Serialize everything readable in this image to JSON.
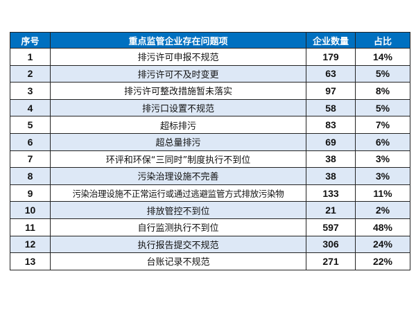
{
  "table": {
    "headers": [
      "序号",
      "重点监管企业存在问题项",
      "企业数量",
      "占比"
    ],
    "rows": [
      {
        "no": "1",
        "issue": "排污许可申报不规范",
        "count": "179",
        "pct": "14%"
      },
      {
        "no": "2",
        "issue": "排污许可不及时变更",
        "count": "63",
        "pct": "5%"
      },
      {
        "no": "3",
        "issue": "排污许可整改措施暂未落实",
        "count": "97",
        "pct": "8%"
      },
      {
        "no": "4",
        "issue": "排污口设置不规范",
        "count": "58",
        "pct": "5%"
      },
      {
        "no": "5",
        "issue": "超标排污",
        "count": "83",
        "pct": "7%"
      },
      {
        "no": "6",
        "issue": "超总量排污",
        "count": "69",
        "pct": "6%"
      },
      {
        "no": "7",
        "issue": "环评和环保“三同时”制度执行不到位",
        "count": "38",
        "pct": "3%"
      },
      {
        "no": "8",
        "issue": "污染治理设施不完善",
        "count": "38",
        "pct": "3%"
      },
      {
        "no": "9",
        "issue": "污染治理设施不正常运行或通过逃避监管方式排放污染物",
        "count": "133",
        "pct": "11%"
      },
      {
        "no": "10",
        "issue": "排放管控不到位",
        "count": "21",
        "pct": "2%"
      },
      {
        "no": "11",
        "issue": "自行监测执行不到位",
        "count": "597",
        "pct": "48%"
      },
      {
        "no": "12",
        "issue": "执行报告提交不规范",
        "count": "306",
        "pct": "24%"
      },
      {
        "no": "13",
        "issue": "台账记录不规范",
        "count": "271",
        "pct": "22%"
      }
    ]
  },
  "colors": {
    "header_bg": "#0070c0",
    "header_text": "#ffffff",
    "stripe": "#dde8f6",
    "border": "#222222"
  }
}
